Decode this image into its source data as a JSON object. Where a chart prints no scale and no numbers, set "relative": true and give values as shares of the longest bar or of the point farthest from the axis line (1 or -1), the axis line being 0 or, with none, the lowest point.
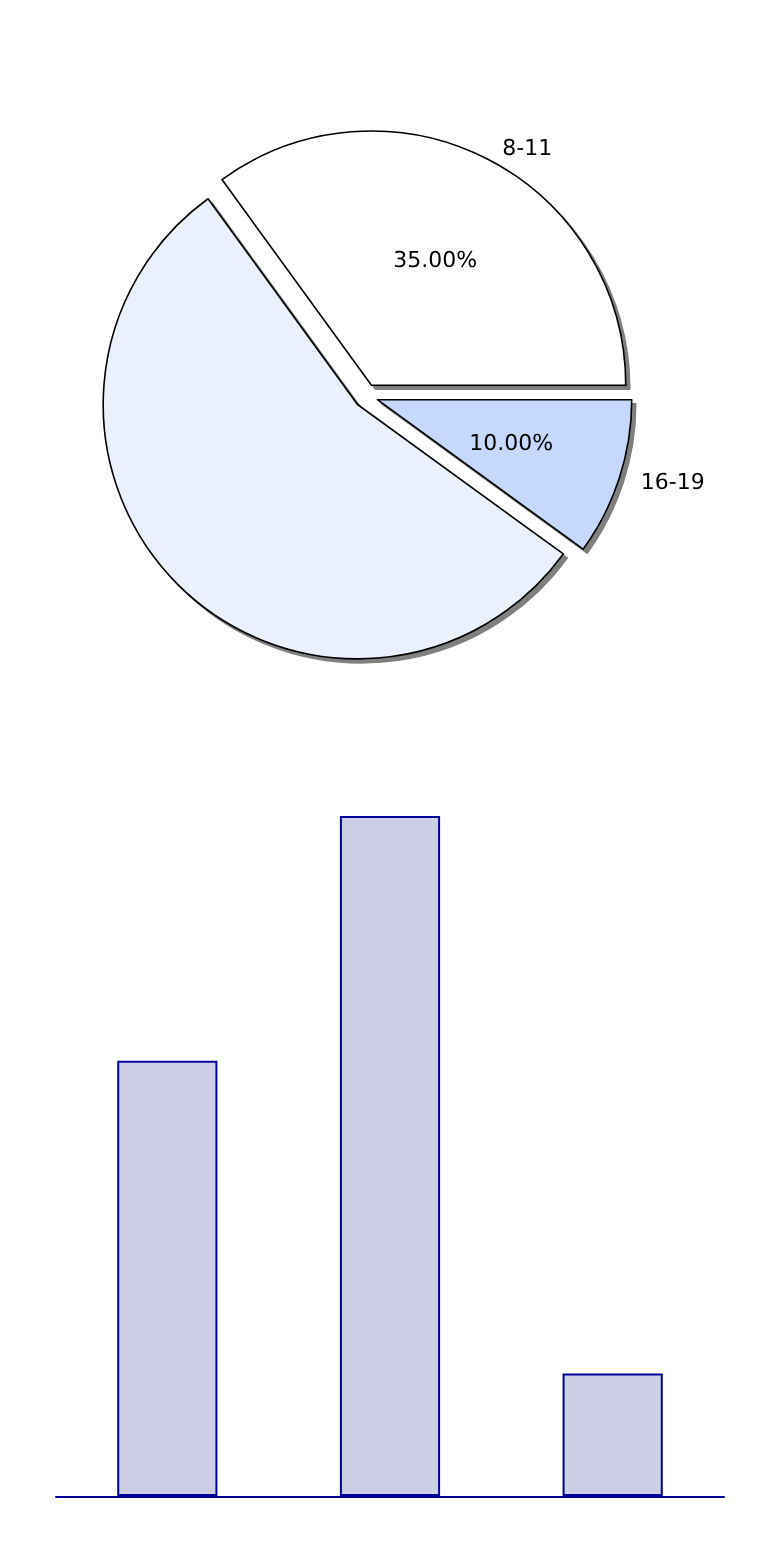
{
  "chart_data": [
    {
      "type": "pie",
      "categories": [
        "8-11",
        null,
        "16-19"
      ],
      "values": [
        35,
        55,
        10
      ],
      "colors": [
        "#ffffff",
        "#eaf1fd",
        "#c6d9fd"
      ],
      "value_labels": [
        "35.00%",
        null,
        "10.00%"
      ]
    },
    {
      "type": "bar",
      "relative": true,
      "categories": [
        null,
        null,
        null
      ],
      "values": [
        0.64,
        1,
        0.18
      ],
      "color": "#cdcfe6"
    }
  ]
}
